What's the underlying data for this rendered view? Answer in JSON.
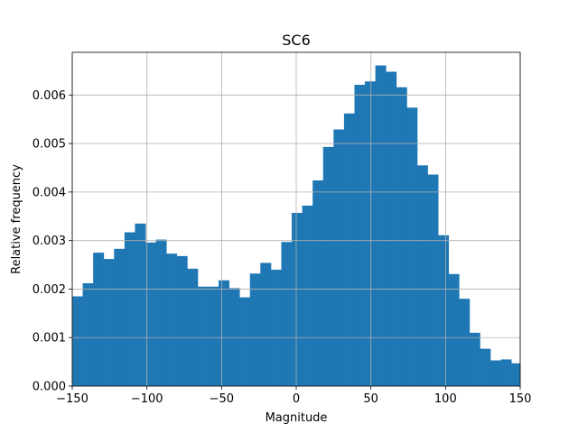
{
  "chart_data": {
    "type": "bar",
    "title": "SC6",
    "xlabel": "Magnitude",
    "ylabel": "Relative frequency",
    "xlim": [
      -150,
      150
    ],
    "ylim": [
      0,
      0.00688
    ],
    "grid": true,
    "bar_color": "#1f77b4",
    "bin_width": 7.0,
    "bins_start": [
      -150,
      -143,
      -136,
      -129,
      -122,
      -115,
      -108,
      -101,
      -94,
      -87,
      -80,
      -73,
      -66,
      -59,
      -52,
      -45,
      -38,
      -31,
      -24,
      -17,
      -10,
      -3,
      4,
      11,
      18,
      25,
      32,
      39,
      46,
      53,
      60,
      67,
      74,
      81,
      88,
      95,
      102,
      109,
      116,
      123,
      130,
      137,
      144
    ],
    "values": [
      0.00185,
      0.00212,
      0.00275,
      0.00262,
      0.00283,
      0.00317,
      0.00335,
      0.00296,
      0.00302,
      0.00273,
      0.00268,
      0.00242,
      0.00205,
      0.00205,
      0.00218,
      0.00202,
      0.00183,
      0.00232,
      0.00254,
      0.0024,
      0.00297,
      0.00357,
      0.00372,
      0.00424,
      0.00493,
      0.00529,
      0.00562,
      0.00621,
      0.00628,
      0.00661,
      0.00648,
      0.00616,
      0.00574,
      0.00455,
      0.00436,
      0.00311,
      0.00231,
      0.0018,
      0.0011,
      0.00077,
      0.00053,
      0.00055,
      0.00047
    ],
    "x_ticks": [
      -150,
      -100,
      -50,
      0,
      50,
      100,
      150
    ],
    "x_tick_labels": [
      "−150",
      "−100",
      "−50",
      "0",
      "50",
      "100",
      "150"
    ],
    "y_ticks": [
      0,
      0.001,
      0.002,
      0.003,
      0.004,
      0.005,
      0.006
    ],
    "y_tick_labels": [
      "0.000",
      "0.001",
      "0.002",
      "0.003",
      "0.004",
      "0.005",
      "0.006"
    ]
  }
}
